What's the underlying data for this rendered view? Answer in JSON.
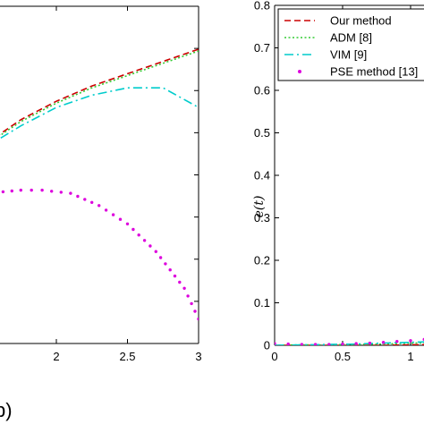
{
  "chart_data": [
    {
      "type": "line",
      "panel_label": "b)",
      "xlim": [
        0,
        3
      ],
      "x_ticks": [
        "2",
        "2.5",
        "3"
      ],
      "x_tick_values": [
        2,
        2.5,
        3
      ],
      "series": [
        {
          "legend": "Our method",
          "color": "#cc0000",
          "style": "dashed",
          "x": [
            1.3,
            1.5,
            1.75,
            2,
            2.25,
            2.5,
            2.75,
            3
          ],
          "y": [
            0.535,
            0.575,
            0.615,
            0.645,
            0.67,
            0.69,
            0.71,
            0.73
          ]
        },
        {
          "legend": "ADM [8]",
          "color": "#33cc33",
          "style": "dotted",
          "x": [
            1.3,
            1.5,
            1.75,
            2,
            2.25,
            2.5,
            2.75,
            3
          ],
          "y": [
            0.535,
            0.573,
            0.612,
            0.642,
            0.667,
            0.687,
            0.707,
            0.727
          ]
        },
        {
          "legend": "VIM [9]",
          "color": "#00cccc",
          "style": "dashdot",
          "x": [
            1.3,
            1.5,
            1.75,
            2,
            2.25,
            2.5,
            2.75,
            3
          ],
          "y": [
            0.535,
            0.57,
            0.605,
            0.635,
            0.655,
            0.667,
            0.667,
            0.635
          ]
        },
        {
          "legend": "PSE method [13]",
          "color": "#dd00dd",
          "style": "dots",
          "x": [
            1.3,
            1.5,
            1.75,
            1.9,
            2.1,
            2.3,
            2.5,
            2.7,
            2.9,
            3
          ],
          "y": [
            0.49,
            0.495,
            0.5,
            0.5,
            0.495,
            0.475,
            0.445,
            0.4,
            0.34,
            0.29
          ]
        }
      ]
    },
    {
      "type": "line",
      "ylabel": "e(t)",
      "xlim": [
        0,
        1.2
      ],
      "ylim": [
        0,
        0.8
      ],
      "x_ticks": [
        "0",
        "0.5",
        "1"
      ],
      "x_tick_values": [
        0,
        0.5,
        1
      ],
      "y_ticks": [
        "0",
        "0.1",
        "0.2",
        "0.3",
        "0.4",
        "0.5",
        "0.6",
        "0.7",
        "0.8"
      ],
      "y_tick_values": [
        0,
        0.1,
        0.2,
        0.3,
        0.4,
        0.5,
        0.6,
        0.7,
        0.8
      ],
      "legend_position": "top-right",
      "series": [
        {
          "name": "Our method",
          "color": "#cc0000",
          "style": "dashed",
          "x": [
            0,
            0.2,
            0.4,
            0.6,
            0.8,
            1.0,
            1.2
          ],
          "y": [
            0,
            0,
            0,
            0,
            0,
            0.001,
            0.002
          ]
        },
        {
          "name": "ADM [8]",
          "color": "#33cc33",
          "style": "dotted",
          "x": [
            0,
            0.2,
            0.4,
            0.6,
            0.8,
            1.0,
            1.2
          ],
          "y": [
            0,
            0.001,
            0.001,
            0.002,
            0.003,
            0.005,
            0.006
          ]
        },
        {
          "name": "VIM [9]",
          "color": "#00cccc",
          "style": "dashdot",
          "x": [
            0,
            0.2,
            0.4,
            0.6,
            0.8,
            1.0,
            1.2
          ],
          "y": [
            0,
            0.001,
            0.002,
            0.003,
            0.005,
            0.007,
            0.009
          ]
        },
        {
          "name": "PSE method [13]",
          "color": "#dd00dd",
          "style": "dots",
          "x": [
            0,
            0.1,
            0.2,
            0.3,
            0.4,
            0.5,
            0.6,
            0.7,
            0.8,
            0.9,
            1.0,
            1.1,
            1.2
          ],
          "y": [
            0.004,
            0.003,
            0.002,
            0.002,
            0.002,
            0.003,
            0.004,
            0.005,
            0.007,
            0.009,
            0.011,
            0.014,
            0.017
          ]
        }
      ]
    }
  ]
}
